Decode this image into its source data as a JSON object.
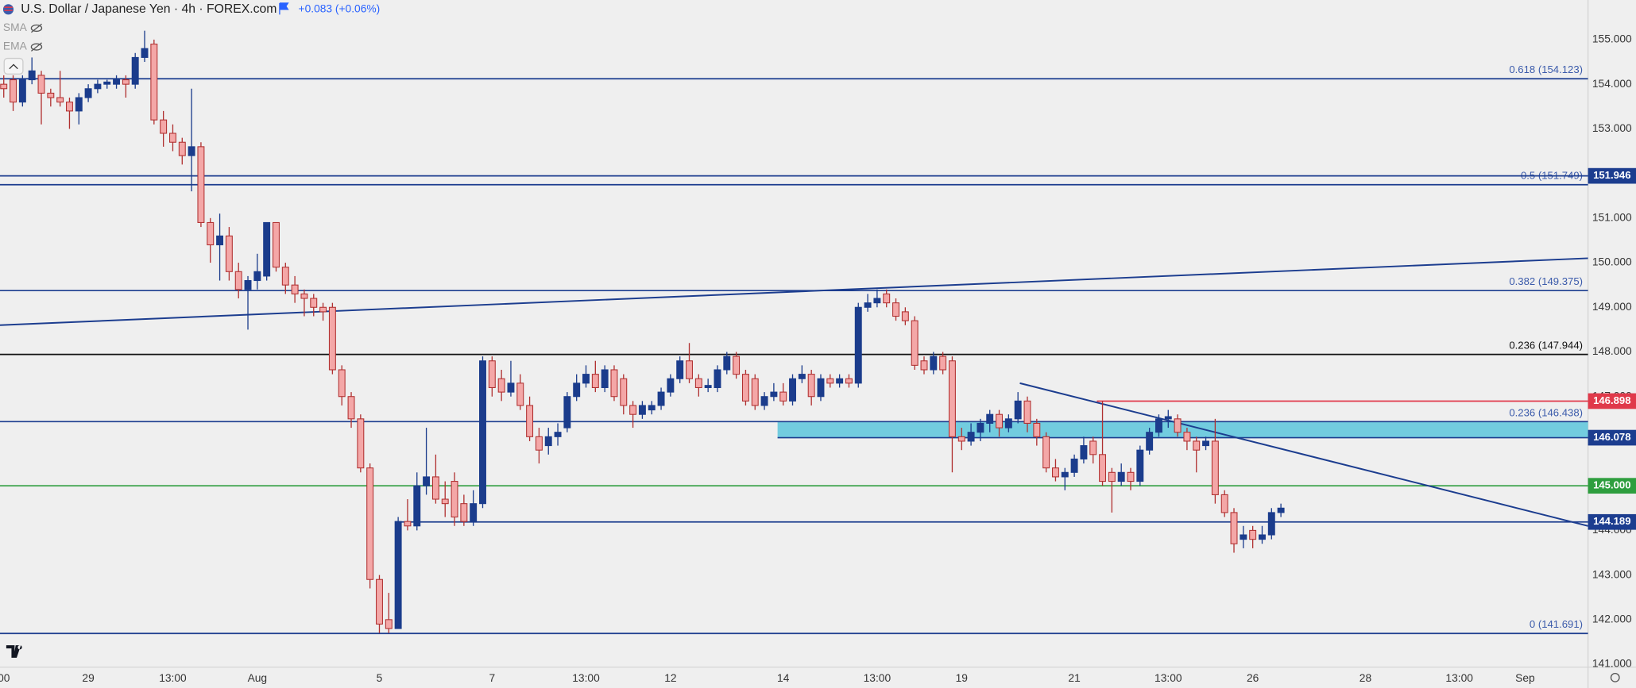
{
  "chart_data": {
    "type": "candlestick",
    "title": "U.S. Dollar / Japanese Yen · 4h · FOREX.com",
    "change": "+0.083 (+0.06%)",
    "indicators": [
      "SMA",
      "EMA"
    ],
    "up_color": "#1b3c8c",
    "down_color": "#f4a7a7",
    "down_border": "#b03030",
    "candles": {
      "open": [
        154.0,
        154.1,
        153.6,
        154.1,
        154.2,
        153.8,
        153.7,
        153.6,
        153.4,
        153.7,
        153.9,
        154.0,
        154.0,
        154.1,
        154.0,
        154.6,
        154.9,
        153.2,
        152.9,
        152.7,
        152.4,
        152.6,
        150.9,
        150.4,
        150.6,
        149.8,
        149.4,
        149.6,
        149.7,
        150.9,
        149.9,
        149.5,
        149.3,
        149.2,
        149.0,
        149.0,
        147.6,
        147.0,
        146.5,
        145.4,
        142.9,
        142.0,
        141.8,
        144.2,
        144.1,
        145.0,
        145.2,
        144.7,
        145.1,
        144.6,
        144.2,
        144.6,
        147.8,
        147.4,
        147.1,
        147.3,
        146.8,
        146.1,
        145.9,
        146.1,
        146.3,
        147.0,
        147.3,
        147.5,
        147.2,
        147.6,
        147.4,
        146.8,
        146.6,
        146.7,
        146.8,
        147.1,
        147.4,
        147.8,
        147.4,
        147.2,
        147.2,
        147.6,
        147.9,
        147.5,
        147.4,
        146.8,
        147.0,
        147.1,
        146.9,
        147.4,
        147.5,
        147.0,
        147.4,
        147.3,
        147.4,
        147.3,
        149.0,
        149.1,
        149.3,
        149.1,
        148.9,
        148.7,
        147.8,
        147.6,
        147.9,
        147.8,
        146.1,
        146.0,
        146.2,
        146.4,
        146.6,
        146.3,
        146.5,
        146.9,
        146.4,
        146.1,
        145.4,
        145.2,
        145.3,
        145.6,
        146.0,
        145.7,
        145.3,
        145.1,
        145.3,
        145.1,
        145.8,
        146.2,
        146.5,
        146.5,
        146.2,
        146.0,
        145.9,
        146.0,
        144.8,
        144.4,
        143.8,
        144.0,
        143.8,
        143.9,
        144.4
      ],
      "high": [
        154.2,
        154.2,
        154.2,
        154.6,
        154.3,
        153.9,
        154.3,
        153.7,
        153.8,
        154.0,
        154.1,
        154.1,
        154.2,
        154.2,
        154.7,
        155.2,
        155.0,
        153.4,
        153.1,
        152.8,
        153.9,
        152.7,
        151.0,
        151.1,
        150.8,
        150.0,
        149.7,
        150.2,
        150.9,
        150.9,
        150.0,
        149.7,
        149.4,
        149.3,
        149.1,
        149.1,
        147.7,
        147.1,
        146.6,
        145.5,
        143.0,
        142.6,
        144.3,
        144.7,
        145.3,
        146.3,
        145.7,
        145.1,
        145.3,
        144.8,
        144.9,
        147.9,
        147.9,
        147.6,
        147.8,
        147.5,
        147.0,
        146.3,
        146.3,
        146.4,
        147.1,
        147.5,
        147.7,
        147.8,
        147.7,
        147.7,
        147.5,
        146.9,
        146.9,
        146.9,
        147.2,
        147.5,
        147.9,
        148.2,
        147.5,
        147.4,
        147.7,
        148.0,
        148.0,
        147.6,
        147.5,
        147.1,
        147.3,
        147.3,
        147.5,
        147.7,
        147.6,
        147.5,
        147.5,
        147.5,
        147.5,
        149.1,
        149.3,
        149.4,
        149.4,
        149.2,
        149.0,
        148.8,
        147.9,
        148.0,
        148.0,
        147.9,
        146.3,
        146.4,
        146.5,
        146.7,
        146.7,
        146.6,
        147.1,
        147.0,
        146.5,
        146.2,
        145.6,
        145.4,
        145.7,
        146.1,
        146.1,
        146.9,
        145.4,
        145.5,
        145.4,
        145.9,
        146.3,
        146.6,
        146.7,
        146.6,
        146.3,
        146.1,
        146.1,
        146.5,
        144.9,
        144.5,
        144.1,
        144.1,
        144.1,
        144.5,
        144.6
      ],
      "low": [
        153.7,
        153.4,
        153.5,
        154.0,
        153.1,
        153.5,
        153.5,
        153.0,
        153.1,
        153.6,
        153.8,
        153.9,
        153.9,
        153.7,
        153.9,
        154.5,
        153.1,
        152.6,
        152.5,
        152.2,
        151.6,
        150.8,
        150.0,
        149.6,
        149.6,
        149.2,
        148.5,
        149.4,
        149.6,
        149.8,
        149.3,
        149.1,
        148.8,
        148.8,
        148.7,
        147.5,
        146.8,
        146.3,
        145.3,
        142.7,
        141.7,
        141.7,
        141.8,
        144.0,
        144.0,
        144.8,
        144.6,
        144.3,
        144.1,
        144.1,
        144.1,
        144.5,
        147.0,
        146.9,
        147.0,
        146.7,
        146.0,
        145.5,
        145.7,
        145.9,
        146.2,
        146.9,
        147.2,
        147.1,
        147.1,
        146.9,
        146.6,
        146.3,
        146.5,
        146.6,
        146.7,
        147.0,
        147.3,
        147.3,
        147.0,
        147.1,
        147.1,
        147.5,
        147.4,
        146.8,
        146.7,
        146.7,
        146.9,
        146.8,
        146.8,
        147.3,
        146.8,
        146.9,
        147.2,
        147.2,
        147.2,
        147.2,
        148.9,
        149.0,
        149.0,
        148.7,
        148.6,
        147.6,
        147.5,
        147.5,
        147.5,
        145.3,
        145.8,
        145.9,
        146.0,
        146.2,
        146.1,
        146.2,
        146.4,
        146.2,
        145.9,
        145.3,
        145.1,
        144.9,
        145.2,
        145.5,
        145.5,
        145.0,
        144.4,
        145.0,
        144.9,
        145.0,
        145.7,
        146.1,
        146.3,
        146.1,
        145.8,
        145.3,
        145.8,
        144.6,
        144.3,
        143.5,
        143.6,
        143.6,
        143.7,
        143.8,
        144.3
      ],
      "close": [
        153.9,
        153.6,
        154.1,
        154.3,
        153.8,
        153.7,
        153.6,
        153.4,
        153.7,
        153.9,
        154.0,
        154.05,
        154.1,
        154.0,
        154.6,
        154.8,
        153.2,
        152.9,
        152.7,
        152.4,
        152.6,
        150.9,
        150.4,
        150.6,
        149.8,
        149.4,
        149.6,
        149.8,
        150.9,
        149.9,
        149.5,
        149.3,
        149.2,
        149.0,
        148.9,
        147.6,
        147.0,
        146.5,
        145.4,
        142.9,
        141.9,
        141.8,
        144.2,
        144.1,
        145.0,
        145.2,
        144.7,
        144.6,
        144.3,
        144.2,
        144.6,
        147.8,
        147.2,
        147.1,
        147.3,
        146.8,
        146.1,
        145.8,
        146.1,
        146.2,
        147.0,
        147.3,
        147.5,
        147.2,
        147.6,
        147.0,
        146.8,
        146.6,
        146.8,
        146.8,
        147.1,
        147.4,
        147.8,
        147.4,
        147.2,
        147.25,
        147.6,
        147.9,
        147.5,
        146.9,
        146.8,
        147.0,
        147.1,
        146.9,
        147.4,
        147.5,
        147.0,
        147.4,
        147.3,
        147.4,
        147.3,
        149.0,
        149.1,
        149.2,
        149.1,
        148.8,
        148.7,
        147.7,
        147.6,
        147.9,
        147.6,
        146.1,
        146.0,
        146.2,
        146.4,
        146.6,
        146.3,
        146.5,
        146.9,
        146.4,
        146.1,
        145.4,
        145.2,
        145.3,
        145.6,
        145.9,
        145.7,
        145.1,
        145.1,
        145.3,
        145.1,
        145.8,
        146.2,
        146.5,
        146.55,
        146.2,
        146.0,
        145.8,
        146.0,
        144.8,
        144.4,
        143.7,
        143.9,
        143.8,
        143.9,
        144.4,
        144.5
      ]
    },
    "xlim": [
      -0.4,
      168.7
    ],
    "ylim": [
      140.935,
      155.888
    ],
    "xticks": [
      {
        "value": 0,
        "label": "00"
      },
      {
        "value": 9,
        "label": "29"
      },
      {
        "value": 18,
        "label": "13:00"
      },
      {
        "value": 27,
        "label": "Aug"
      },
      {
        "value": 40,
        "label": "5"
      },
      {
        "value": 52,
        "label": "7"
      },
      {
        "value": 62,
        "label": "13:00"
      },
      {
        "value": 71,
        "label": "12"
      },
      {
        "value": 83,
        "label": "14"
      },
      {
        "value": 93,
        "label": "13:00"
      },
      {
        "value": 102,
        "label": "19"
      },
      {
        "value": 114,
        "label": "21"
      },
      {
        "value": 124,
        "label": "13:00"
      },
      {
        "value": 133,
        "label": "26"
      },
      {
        "value": 145,
        "label": "28"
      },
      {
        "value": 155,
        "label": "13:00"
      },
      {
        "value": 162,
        "label": "Sep"
      }
    ],
    "yticks": [
      {
        "value": 155,
        "label": "155.000"
      },
      {
        "value": 154,
        "label": "154.000"
      },
      {
        "value": 153,
        "label": "153.000"
      },
      {
        "value": 152,
        "label": "152.000"
      },
      {
        "value": 151,
        "label": "151.000"
      },
      {
        "value": 150,
        "label": "150.000"
      },
      {
        "value": 149,
        "label": "149.000"
      },
      {
        "value": 148,
        "label": "148.000"
      },
      {
        "value": 147,
        "label": "147.000"
      },
      {
        "value": 146,
        "label": "146.000"
      },
      {
        "value": 145,
        "label": "145.000"
      },
      {
        "value": 144,
        "label": "144.000"
      },
      {
        "value": 143,
        "label": "143.000"
      },
      {
        "value": 142,
        "label": "142.000"
      },
      {
        "value": 141,
        "label": "141.000"
      }
    ],
    "grid": false,
    "fib_levels": [
      {
        "value": 154.123,
        "label": "0.618 (154.123)",
        "color": "#1c3d8f"
      },
      {
        "value": 151.749,
        "label": "0.5 (151.749)",
        "color": "#1c3d8f"
      },
      {
        "value": 149.375,
        "label": "0.382 (149.375)",
        "color": "#1c3d8f"
      },
      {
        "value": 147.944,
        "label": "0.236 (147.944)",
        "color": "#111111"
      },
      {
        "value": 146.438,
        "label": "0.236 (146.438)",
        "color": "#1c3d8f"
      },
      {
        "value": 141.691,
        "label": "0 (141.691)",
        "color": "#1c3d8f"
      }
    ],
    "price_lines": [
      {
        "value": 151.946,
        "label": "151.946",
        "color": "#1c3d8f"
      },
      {
        "value": 146.898,
        "label": "146.898",
        "color": "#e0394a",
        "from": 116.4
      },
      {
        "value": 146.078,
        "label": "146.078",
        "color": "#1c3d8f",
        "from": 82.4
      },
      {
        "value": 145.0,
        "label": "145.000",
        "color": "#2e9e3e"
      },
      {
        "value": 144.189,
        "label": "144.189",
        "color": "#1c3d8f",
        "from": 41.7
      }
    ],
    "zone": {
      "from": 82.4,
      "low": 146.078,
      "high": 146.438,
      "color": "#5cc6dc"
    },
    "trendlines": [
      {
        "x": [
          -0.4,
          168.7
        ],
        "y": [
          148.6,
          150.1
        ],
        "color": "#1c3d8f"
      },
      {
        "x": [
          108.2,
          168.7
        ],
        "y": [
          147.3,
          144.1
        ],
        "color": "#1c3d8f"
      }
    ]
  }
}
